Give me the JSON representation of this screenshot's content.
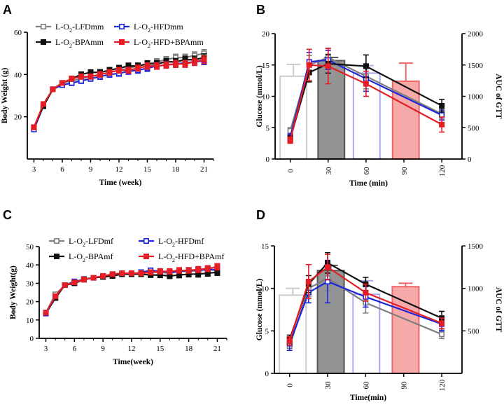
{
  "chart_data": [
    {
      "panel": "A",
      "type": "line",
      "xlabel": "Time (week)",
      "ylabel": "Body Weight (g)",
      "xlim": [
        2.3,
        22
      ],
      "ylim": [
        0,
        60
      ],
      "xticks": [
        3,
        6,
        9,
        12,
        15,
        18,
        21
      ],
      "yticks": [
        20,
        40,
        60
      ],
      "legend": {
        "columns": 2,
        "placement": "top-left"
      },
      "x": [
        3,
        4,
        5,
        6,
        7,
        8,
        9,
        10,
        11,
        12,
        13,
        14,
        15,
        16,
        17,
        18,
        19,
        20,
        21
      ],
      "series": [
        {
          "name": "L-O2-LFDmm",
          "name_parts": [
            "L-O",
            "2",
            "-LFDmm"
          ],
          "color": "#7f7f7f",
          "marker": "open-square",
          "values": [
            15,
            25,
            33,
            36,
            37,
            38,
            39,
            40,
            41,
            42,
            43,
            44,
            45,
            46,
            47,
            48,
            48,
            49,
            50
          ],
          "errors": [
            1,
            1,
            1,
            1,
            1,
            1,
            1.2,
            1.2,
            1.2,
            1.3,
            1.3,
            1.4,
            1.5,
            1.5,
            1.5,
            1.6,
            1.6,
            1.7,
            1.8
          ]
        },
        {
          "name": "L-O2-HFDmm",
          "name_parts": [
            "L-O",
            "2",
            "-HFDmm"
          ],
          "color": "#1f25d8",
          "marker": "open-square",
          "values": [
            14,
            25,
            33,
            35,
            36,
            37,
            38,
            39,
            40,
            40.5,
            41.5,
            42,
            43,
            44,
            44.5,
            45,
            45.5,
            46,
            46.5
          ],
          "errors": [
            1,
            1,
            1,
            1,
            1.2,
            1.2,
            1.2,
            1.3,
            1.3,
            1.3,
            1.4,
            1.4,
            1.5,
            1.5,
            1.5,
            1.6,
            1.6,
            1.7,
            1.8
          ]
        },
        {
          "name": "L-O2-BPAmm",
          "name_parts": [
            "L-O",
            "2",
            "-BPAmm"
          ],
          "color": "#111111",
          "marker": "filled-square",
          "values": [
            15,
            25,
            33,
            36,
            38,
            40,
            41,
            41,
            42,
            43,
            44,
            44,
            45,
            45,
            46,
            46,
            47,
            47,
            48
          ],
          "errors": [
            1,
            1,
            1,
            1,
            1.2,
            1.2,
            1.2,
            1.3,
            1.3,
            1.3,
            1.4,
            1.4,
            1.5,
            1.5,
            1.5,
            1.6,
            1.6,
            1.7,
            1.8
          ]
        },
        {
          "name": "L-O2-HFD+BPAmm",
          "name_parts": [
            "L-O",
            "2",
            "-HFD+BPAmm"
          ],
          "color": "#e51e25",
          "marker": "filled-square",
          "values": [
            15,
            26,
            33,
            36,
            38,
            39,
            39,
            40,
            41,
            42,
            42,
            43,
            44,
            44,
            44.5,
            45,
            45,
            46,
            47
          ],
          "errors": [
            1,
            1,
            1,
            1,
            1.2,
            1.2,
            1.2,
            1.3,
            1.3,
            1.3,
            1.4,
            1.4,
            1.5,
            1.5,
            1.5,
            1.6,
            1.6,
            1.7,
            1.8
          ]
        }
      ]
    },
    {
      "panel": "B",
      "type": "line+bar",
      "xlabel": "Time (min)",
      "ylabel": "Glucose (mmol/L)",
      "ylabel_right": "AUC of GTT",
      "xlim": [
        -12,
        136
      ],
      "ylim": [
        0,
        20
      ],
      "ylim_right": [
        0,
        2000
      ],
      "xticks": [
        0,
        30,
        60,
        90,
        120
      ],
      "yticks": [
        0,
        5,
        10,
        15,
        20
      ],
      "yticks_right": [
        0,
        500,
        1000,
        1500,
        2000
      ],
      "x": [
        0,
        15,
        30,
        60,
        120
      ],
      "series": [
        {
          "name": "L-O2-LFDmm",
          "color": "#7f7f7f",
          "marker": "open-square",
          "values": [
            4.5,
            15,
            16.2,
            13.2,
            7.2
          ],
          "errors": [
            0.5,
            1.5,
            1.5,
            2,
            0.8
          ]
        },
        {
          "name": "L-O2-HFDmm",
          "color": "#1f25d8",
          "marker": "open-square",
          "values": [
            3.5,
            15.5,
            15.8,
            12.8,
            7.0
          ],
          "errors": [
            0.5,
            1.5,
            1.5,
            2,
            0.8
          ]
        },
        {
          "name": "L-O2-BPAmm",
          "color": "#111111",
          "marker": "filled-square",
          "values": [
            3.2,
            13.8,
            15.2,
            14.8,
            8.5
          ],
          "errors": [
            0.5,
            1.5,
            1.5,
            1.8,
            1.0
          ]
        },
        {
          "name": "L-O2-HFD+BPAmm",
          "color": "#e51e25",
          "marker": "filled-square",
          "values": [
            3.0,
            15.0,
            14.8,
            12.0,
            5.5
          ],
          "errors": [
            0.5,
            2.5,
            2.8,
            2.0,
            1.2
          ]
        }
      ],
      "auc_bars": [
        {
          "name": "L-O2-LFDmm",
          "x": -8,
          "width": 21,
          "value": 1320,
          "error": 190,
          "fill": "none",
          "stroke": "#cccccc"
        },
        {
          "name": "L-O2-BPAmm",
          "x": 22,
          "width": 21,
          "value": 1570,
          "error": 50,
          "fill": "#888888",
          "stroke": "#555555"
        },
        {
          "name": "L-O2-HFDmm",
          "x": 50,
          "width": 21,
          "value": 1370,
          "error": 120,
          "fill": "none",
          "stroke": "#aaaaf0"
        },
        {
          "name": "L-O2-HFD+BPAmm",
          "x": 81,
          "width": 21,
          "value": 1240,
          "error": 290,
          "fill": "#f4a0a0",
          "stroke": "#ee6666"
        }
      ]
    },
    {
      "panel": "C",
      "type": "line",
      "xlabel": "Time(week)",
      "ylabel": "Body Weight(g)",
      "xlim": [
        2.3,
        22
      ],
      "ylim": [
        0,
        50
      ],
      "xticks": [
        3,
        6,
        9,
        12,
        15,
        18,
        21
      ],
      "yticks": [
        0,
        10,
        20,
        30,
        40,
        50
      ],
      "legend": {
        "columns": 2,
        "placement": "top-left"
      },
      "x": [
        3,
        4,
        5,
        6,
        7,
        8,
        9,
        10,
        11,
        12,
        13,
        14,
        15,
        16,
        17,
        18,
        19,
        20,
        21
      ],
      "series": [
        {
          "name": "L-O2-LFDmf",
          "name_parts": [
            "L-O",
            "2",
            "-LFDmf"
          ],
          "color": "#7f7f7f",
          "marker": "open-square",
          "values": [
            14,
            24,
            29,
            30.5,
            32.5,
            33,
            33.5,
            34.5,
            35,
            35.5,
            35.5,
            36,
            36,
            35.5,
            36.5,
            36.5,
            37,
            37.5,
            37
          ],
          "errors": [
            1,
            1,
            1,
            1,
            1,
            1,
            1,
            1.2,
            1.2,
            1.2,
            1.3,
            1.3,
            1.4,
            1.4,
            1.5,
            1.5,
            1.6,
            1.6,
            1.7
          ]
        },
        {
          "name": "L-O2-HFDmf",
          "name_parts": [
            "L-O",
            "2",
            "-HFDmf"
          ],
          "color": "#1f25d8",
          "marker": "open-square",
          "values": [
            13.5,
            22,
            29,
            31,
            32,
            33,
            34,
            34.5,
            35,
            35,
            36,
            37,
            36.5,
            36,
            36.5,
            37,
            37,
            37.5,
            37.5
          ],
          "errors": [
            1,
            1,
            1,
            1,
            1,
            1,
            1,
            1.2,
            1.2,
            1.2,
            1.3,
            1.3,
            1.4,
            1.4,
            1.5,
            1.5,
            1.6,
            1.6,
            1.7
          ]
        },
        {
          "name": "L-O2-BPAmf",
          "name_parts": [
            "L-O",
            "2",
            "-BPAmf"
          ],
          "color": "#111111",
          "marker": "filled-square",
          "values": [
            14,
            22,
            29,
            30,
            32,
            33,
            33.5,
            34,
            35,
            35,
            35,
            34.5,
            34.5,
            34,
            34.5,
            35,
            35,
            35.5,
            36
          ],
          "errors": [
            1,
            1,
            1,
            1,
            1,
            1,
            1,
            1.2,
            1.2,
            1.2,
            1.3,
            1.3,
            1.4,
            1.4,
            1.5,
            1.5,
            1.6,
            1.6,
            1.7
          ]
        },
        {
          "name": "L-O2-HFD+BPAmf",
          "name_parts": [
            "L-O",
            "2",
            "-HFD+BPAmf"
          ],
          "color": "#e51e25",
          "marker": "filled-square",
          "values": [
            14,
            23,
            29,
            30.5,
            32,
            33,
            34,
            35,
            35.5,
            35.5,
            35.5,
            36,
            36.5,
            36.5,
            37,
            37,
            37.5,
            38,
            39
          ],
          "errors": [
            1,
            1,
            1,
            1,
            1,
            1,
            1,
            1.2,
            1.2,
            1.2,
            1.3,
            1.3,
            1.4,
            1.4,
            1.5,
            1.5,
            1.6,
            1.6,
            1.7
          ]
        }
      ]
    },
    {
      "panel": "D",
      "type": "line+bar",
      "xlabel": "Time(min)",
      "ylabel": "Glucose (mmol/L)",
      "ylabel_right": "AUC of GTT",
      "xlim": [
        -12,
        136
      ],
      "ylim": [
        0,
        15
      ],
      "ylim_right": [
        0,
        1500
      ],
      "xticks": [
        0,
        30,
        60,
        90,
        120
      ],
      "yticks": [
        0,
        5,
        10,
        15
      ],
      "yticks_right": [
        500,
        1000,
        1500
      ],
      "x": [
        0,
        15,
        30,
        60,
        120
      ],
      "series": [
        {
          "name": "L-O2-LFDmf",
          "color": "#7f7f7f",
          "marker": "open-square",
          "values": [
            3.2,
            10,
            11.2,
            8.3,
            4.6
          ],
          "errors": [
            0.5,
            1,
            1.5,
            1.2,
            0.5
          ]
        },
        {
          "name": "L-O2-HFDmf",
          "color": "#1f25d8",
          "marker": "open-square",
          "values": [
            3.5,
            9.5,
            10.8,
            9.0,
            5.8
          ],
          "errors": [
            0.8,
            1.2,
            2.5,
            1.2,
            0.8
          ]
        },
        {
          "name": "L-O2-BPAmf",
          "color": "#111111",
          "marker": "filled-square",
          "values": [
            4.0,
            10.5,
            13.0,
            10.5,
            6.5
          ],
          "errors": [
            0.5,
            1,
            1.2,
            0.8,
            0.8
          ]
        },
        {
          "name": "L-O2-HFD+BPAmf",
          "color": "#e51e25",
          "marker": "filled-square",
          "values": [
            3.8,
            10.8,
            12.5,
            9.5,
            5.9
          ],
          "errors": [
            0.5,
            2,
            1.5,
            1,
            0.6
          ]
        }
      ],
      "auc_bars": [
        {
          "name": "L-O2-LFDmf",
          "x": -8,
          "width": 21,
          "value": 920,
          "error": 80,
          "fill": "none",
          "stroke": "#cccccc"
        },
        {
          "name": "L-O2-BPAmf",
          "x": 22,
          "width": 21,
          "value": 1210,
          "error": 60,
          "fill": "#888888",
          "stroke": "#555555"
        },
        {
          "name": "L-O2-HFDmf",
          "x": 50,
          "width": 21,
          "value": 930,
          "error": 160,
          "fill": "none",
          "stroke": "#aaaaf0"
        },
        {
          "name": "L-O2-HFD+BPAmf",
          "x": 81,
          "width": 21,
          "value": 1020,
          "error": 40,
          "fill": "#f4a0a0",
          "stroke": "#ee6666"
        }
      ]
    }
  ]
}
